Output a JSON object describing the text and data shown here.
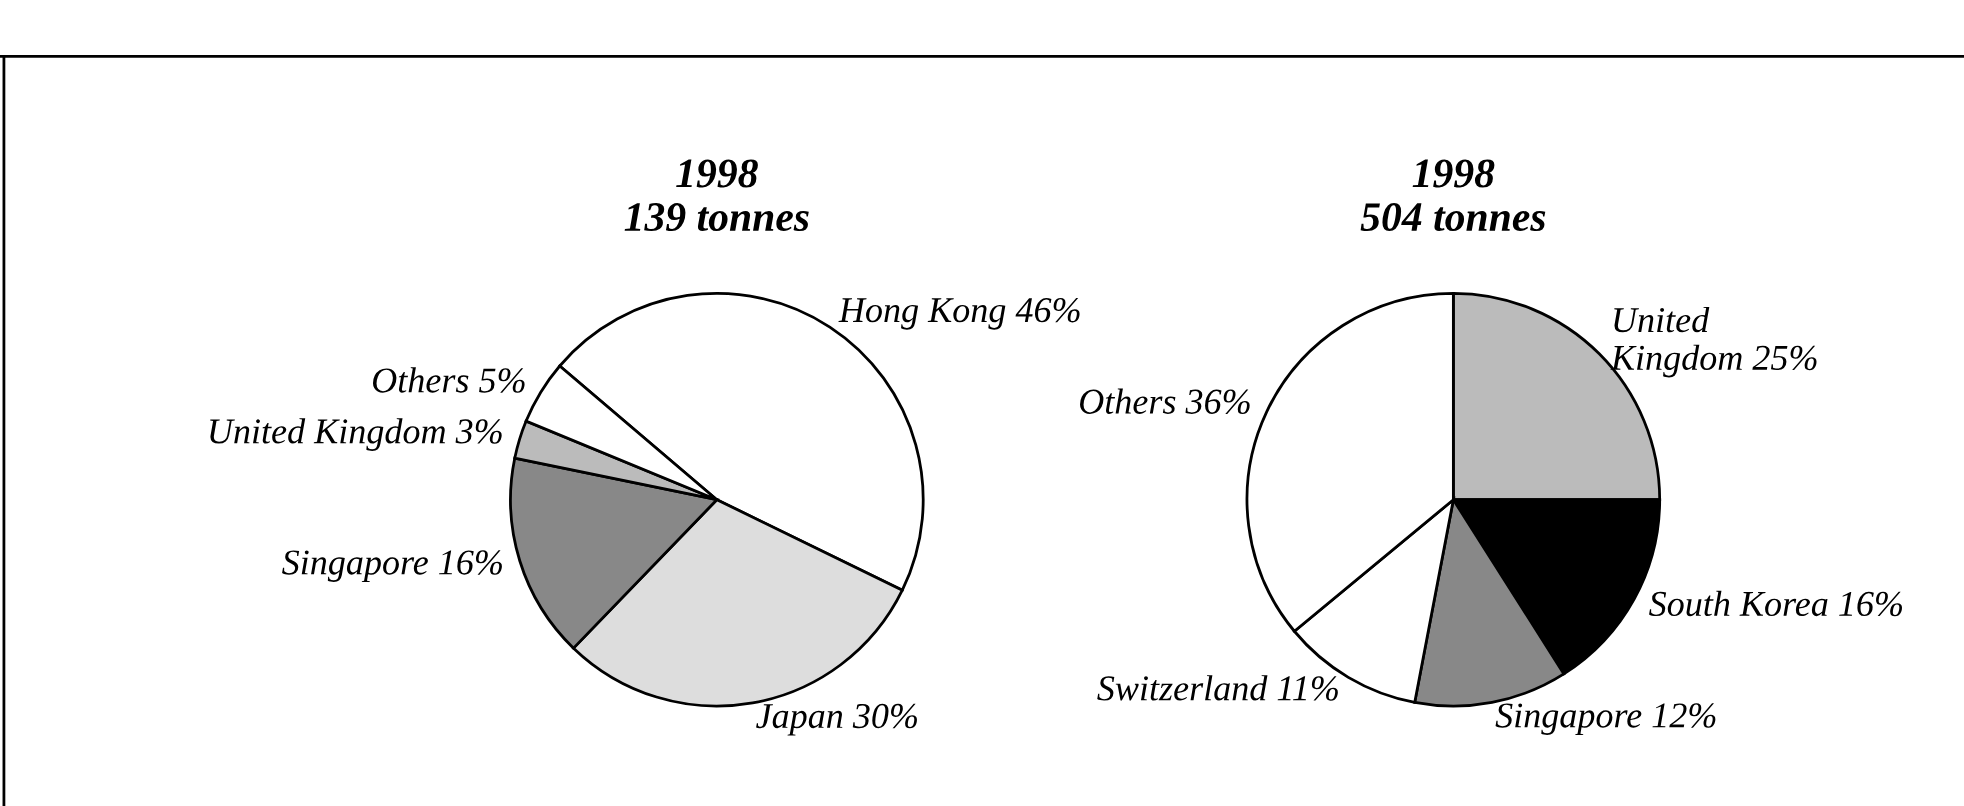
{
  "chart_data": [
    {
      "type": "pie",
      "title": "1998\n139 tonnes",
      "categories": [
        "Hong Kong",
        "Japan",
        "Singapore",
        "United Kingdom",
        "Others"
      ],
      "values": [
        46,
        30,
        16,
        3,
        5
      ],
      "value_labels": [
        "46%",
        "30%",
        "16%",
        "3%",
        "5%"
      ],
      "colors": [
        "#ffffff",
        "#dddddd",
        "#888888",
        "#bbbbbb",
        "#ffffff"
      ]
    },
    {
      "type": "pie",
      "title": "1998\n504 tonnes",
      "categories": [
        "United\nKingdom",
        "South Korea",
        "Singapore",
        "Switzerland",
        "Others"
      ],
      "values": [
        25,
        16,
        12,
        11,
        36
      ],
      "value_labels": [
        "25%",
        "16%",
        "12%",
        "11%",
        "36%"
      ],
      "colors": [
        "#bbbbbb",
        "#000000",
        "#888888",
        "#ffffff",
        "#ffffff"
      ]
    }
  ]
}
